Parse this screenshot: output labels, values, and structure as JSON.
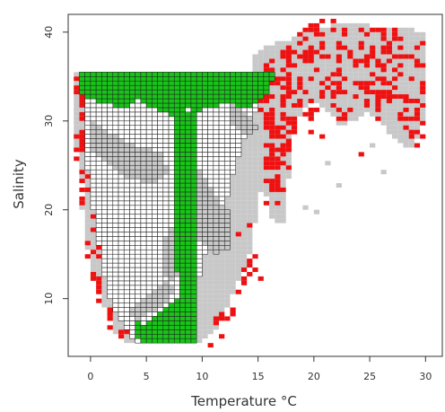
{
  "chart_data": {
    "type": "heatmap",
    "xlabel": "Temperature °C",
    "ylabel": "Salinity",
    "x_ticks": [
      0,
      5,
      10,
      15,
      20,
      25,
      30
    ],
    "y_ticks": [
      10,
      20,
      30,
      40
    ],
    "xlim": [
      -2,
      31.5
    ],
    "ylim": [
      3.5,
      42
    ],
    "grid": false,
    "cell_size": {
      "temperature": 0.5,
      "salinity": 0.5
    },
    "colors": {
      "gray_cells": "#c8c8c8",
      "red_cells": "#ee1111",
      "white_cells": "#ffffff",
      "green_cells": "#18c418",
      "cell_border": "#222222",
      "axis": "#333333"
    },
    "regions": [
      {
        "layer": "gray",
        "description_of_extent": "grey cells across the occupied temperature-salinity space",
        "polygons": [
          [
            [
              -1.5,
              35.5
            ],
            [
              -1.5,
              31
            ],
            [
              -1.2,
              26
            ],
            [
              -0.5,
              22
            ],
            [
              -0.5,
              17
            ],
            [
              0,
              14
            ],
            [
              0.8,
              11
            ],
            [
              1.5,
              8
            ],
            [
              2.3,
              6
            ],
            [
              3.5,
              5
            ],
            [
              10,
              5
            ],
            [
              11.5,
              7
            ],
            [
              12.5,
              9.5
            ],
            [
              13.5,
              12.5
            ],
            [
              14.5,
              16
            ],
            [
              15,
              21
            ],
            [
              16.5,
              27
            ],
            [
              17.5,
              30
            ],
            [
              16.5,
              35.5
            ]
          ],
          [
            [
              14,
              33
            ],
            [
              14.5,
              37.5
            ],
            [
              16,
              38.5
            ],
            [
              18.5,
              39.5
            ],
            [
              20,
              40
            ],
            [
              22,
              41
            ],
            [
              24,
              41
            ],
            [
              26,
              40.5
            ],
            [
              28,
              40.5
            ],
            [
              29.8,
              40
            ],
            [
              30.2,
              36
            ],
            [
              30,
              30
            ],
            [
              28.8,
              27
            ],
            [
              27.5,
              27.5
            ],
            [
              26.5,
              29
            ],
            [
              25,
              31
            ],
            [
              23.5,
              30
            ],
            [
              22.5,
              29
            ],
            [
              21.5,
              31
            ],
            [
              20,
              32
            ],
            [
              19,
              31
            ],
            [
              18,
              28
            ],
            [
              17.8,
              24
            ],
            [
              17.5,
              21
            ],
            [
              17.5,
              18.5
            ],
            [
              16,
              19
            ],
            [
              15.5,
              24
            ],
            [
              15.5,
              29
            ],
            [
              15,
              31
            ]
          ]
        ],
        "scattered": [
          [
            21,
            25
          ],
          [
            22,
            22.5
          ],
          [
            25,
            27
          ],
          [
            26,
            24
          ],
          [
            28,
            27.5
          ],
          [
            29.5,
            28
          ],
          [
            15.5,
            22
          ],
          [
            13,
            24
          ],
          [
            0,
            12
          ],
          [
            -1,
            20
          ],
          [
            19,
            20
          ],
          [
            20,
            19.5
          ]
        ]
      },
      {
        "layer": "red",
        "description_of_extent": "red cells scattered mostly along the outer margins",
        "scatter_bands": [
          {
            "polygon": [
              [
                -1.6,
                35.5
              ],
              [
                -1.6,
                30
              ],
              [
                -1.3,
                26
              ],
              [
                -0.8,
                22
              ],
              [
                -0.7,
                18
              ],
              [
                -0.2,
                14
              ],
              [
                0.5,
                11
              ],
              [
                1,
                8.5
              ],
              [
                1.8,
                6.5
              ],
              [
                2.5,
                5
              ],
              [
                4,
                4.6
              ],
              [
                4.5,
                6
              ],
              [
                3,
                8
              ],
              [
                2,
                11
              ],
              [
                1,
                15
              ],
              [
                0.7,
                20
              ],
              [
                0.5,
                24
              ],
              [
                0.2,
                28
              ],
              [
                0,
                33
              ]
            ],
            "density": 0.3
          },
          {
            "polygon": [
              [
                10.5,
                7
              ],
              [
                12,
                9
              ],
              [
                12.5,
                8.5
              ],
              [
                13,
                11
              ],
              [
                13.5,
                12.5
              ],
              [
                14,
                14
              ],
              [
                15,
                15.5
              ],
              [
                15.5,
                16
              ],
              [
                14,
                12
              ],
              [
                12.5,
                7.5
              ],
              [
                11,
                6.5
              ]
            ],
            "density": 0.4
          },
          {
            "polygon": [
              [
                14.5,
                35
              ],
              [
                16,
                36.5
              ],
              [
                17,
                38
              ],
              [
                18.5,
                39
              ],
              [
                20,
                40
              ],
              [
                22,
                40.8
              ],
              [
                25,
                40.5
              ],
              [
                27,
                40.5
              ],
              [
                29,
                40
              ],
              [
                30,
                39
              ],
              [
                30.2,
                34
              ],
              [
                30,
                29
              ],
              [
                29,
                28
              ],
              [
                28,
                28.5
              ],
              [
                27.2,
                32
              ],
              [
                26,
                30
              ],
              [
                25,
                31
              ],
              [
                24,
                33
              ],
              [
                22.5,
                29
              ],
              [
                21.8,
                30
              ],
              [
                21,
                32
              ],
              [
                19.5,
                28
              ],
              [
                19,
                31
              ],
              [
                18.5,
                30
              ],
              [
                18,
                27
              ],
              [
                17.8,
                23
              ],
              [
                17.5,
                20
              ],
              [
                16.5,
                21
              ],
              [
                16,
                25
              ],
              [
                16,
                29
              ],
              [
                15,
                32
              ]
            ],
            "density": 0.4
          },
          {
            "polygon": [
              [
                18,
                39
              ],
              [
                20,
                41
              ],
              [
                21.5,
                41.5
              ],
              [
                23,
                41
              ],
              [
                22,
                40
              ],
              [
                20,
                39.5
              ]
            ],
            "density": 0.5
          },
          {
            "polygon": [
              [
                15.5,
                20
              ],
              [
                16.5,
                21
              ],
              [
                17,
                24
              ],
              [
                17.5,
                28
              ],
              [
                17,
                31
              ],
              [
                16,
                32
              ],
              [
                15.5,
                28
              ],
              [
                15.2,
                24
              ]
            ],
            "density": 0.45
          },
          {
            "polygon": [
              [
                -1.2,
                33
              ],
              [
                -0.5,
                34
              ],
              [
                0,
                31
              ],
              [
                -0.8,
                30
              ]
            ],
            "density": 0.7
          }
        ],
        "scattered": [
          [
            29,
            27
          ],
          [
            29.5,
            28
          ],
          [
            25.5,
            31
          ],
          [
            24,
            26
          ],
          [
            22,
            30
          ],
          [
            20.5,
            28
          ],
          [
            13,
            17
          ],
          [
            14,
            18
          ],
          [
            12.5,
            8
          ],
          [
            13.5,
            12
          ],
          [
            14.5,
            13
          ],
          [
            15,
            12
          ],
          [
            10.5,
            4.8
          ],
          [
            11.5,
            5.5
          ],
          [
            -1,
            32
          ],
          [
            -0.5,
            31
          ],
          [
            18.5,
            34
          ],
          [
            19,
            36.5
          ]
        ]
      },
      {
        "layer": "white",
        "description_of_extent": "white grid-outlined cells (inverted triangular core)",
        "polygon": [
          [
            -0.5,
            35.5
          ],
          [
            16.5,
            35.5
          ],
          [
            15.5,
            33
          ],
          [
            14.5,
            30.5
          ],
          [
            13.5,
            27
          ],
          [
            12.5,
            23
          ],
          [
            12,
            20
          ],
          [
            11,
            17
          ],
          [
            10,
            14
          ],
          [
            9.5,
            10.5
          ],
          [
            9.5,
            8
          ],
          [
            9.5,
            5
          ],
          [
            4.5,
            5
          ],
          [
            3.5,
            6
          ],
          [
            2.5,
            8
          ],
          [
            1.5,
            11
          ],
          [
            1,
            14
          ],
          [
            0.5,
            18
          ],
          [
            0,
            22
          ],
          [
            -0.5,
            27
          ],
          [
            -0.5,
            31
          ]
        ]
      },
      {
        "layer": "white_gray_bands",
        "description_of_extent": "grey patches inside the white core",
        "polygons": [
          [
            [
              0,
              30.5
            ],
            [
              2,
              28.5
            ],
            [
              4.5,
              27
            ],
            [
              6.5,
              26.5
            ],
            [
              7,
              24
            ],
            [
              5.5,
              23
            ],
            [
              3.5,
              23.5
            ],
            [
              1.5,
              25
            ],
            [
              0,
              27
            ]
          ],
          [
            [
              8.5,
              27
            ],
            [
              10,
              24
            ],
            [
              11.5,
              21
            ],
            [
              12.5,
              20
            ],
            [
              12.5,
              15.5
            ],
            [
              11,
              15
            ],
            [
              9.5,
              17
            ],
            [
              8.8,
              20
            ],
            [
              8.5,
              23
            ]
          ],
          [
            [
              7,
              18
            ],
            [
              8.5,
              17.5
            ],
            [
              8.5,
              14
            ],
            [
              7.5,
              12
            ],
            [
              6.5,
              13
            ],
            [
              6.5,
              16
            ]
          ],
          [
            [
              4,
              7.5
            ],
            [
              6.5,
              9
            ],
            [
              7.5,
              11
            ],
            [
              7,
              12
            ],
            [
              5,
              10
            ],
            [
              3.5,
              8.5
            ]
          ],
          [
            [
              12.5,
              32
            ],
            [
              14,
              31
            ],
            [
              15,
              29
            ],
            [
              14,
              28.5
            ],
            [
              12.5,
              30
            ]
          ]
        ]
      },
      {
        "layer": "green",
        "description_of_extent": "green grid-outlined cells",
        "polygons": [
          [
            [
              -1,
              35.5
            ],
            [
              16.5,
              35.5
            ],
            [
              16,
              33
            ],
            [
              14,
              31.5
            ],
            [
              12.5,
              32
            ],
            [
              11,
              31.5
            ],
            [
              9.5,
              31
            ],
            [
              8.5,
              31.5
            ],
            [
              8.3,
              30
            ],
            [
              7.5,
              30
            ],
            [
              7,
              31
            ],
            [
              5.5,
              31.5
            ],
            [
              4.5,
              32.5
            ],
            [
              3,
              31.5
            ],
            [
              1,
              32
            ],
            [
              0,
              32.5
            ],
            [
              -1,
              33
            ]
          ],
          [
            [
              7.5,
              31
            ],
            [
              9.5,
              31
            ],
            [
              9.5,
              26
            ],
            [
              9.5,
              22
            ],
            [
              9.3,
              18
            ],
            [
              9.5,
              14
            ],
            [
              9.5,
              11
            ],
            [
              9,
              8
            ],
            [
              8.7,
              7.2
            ],
            [
              8,
              8.5
            ],
            [
              7.8,
              12
            ],
            [
              7.5,
              17
            ],
            [
              7.5,
              22
            ],
            [
              7.3,
              27
            ]
          ],
          [
            [
              4,
              8
            ],
            [
              5,
              7
            ],
            [
              6,
              8
            ],
            [
              7,
              9.5
            ],
            [
              8.5,
              10.5
            ],
            [
              9.5,
              10
            ],
            [
              9.5,
              5
            ],
            [
              5,
              5
            ],
            [
              4,
              6
            ]
          ]
        ]
      }
    ]
  }
}
